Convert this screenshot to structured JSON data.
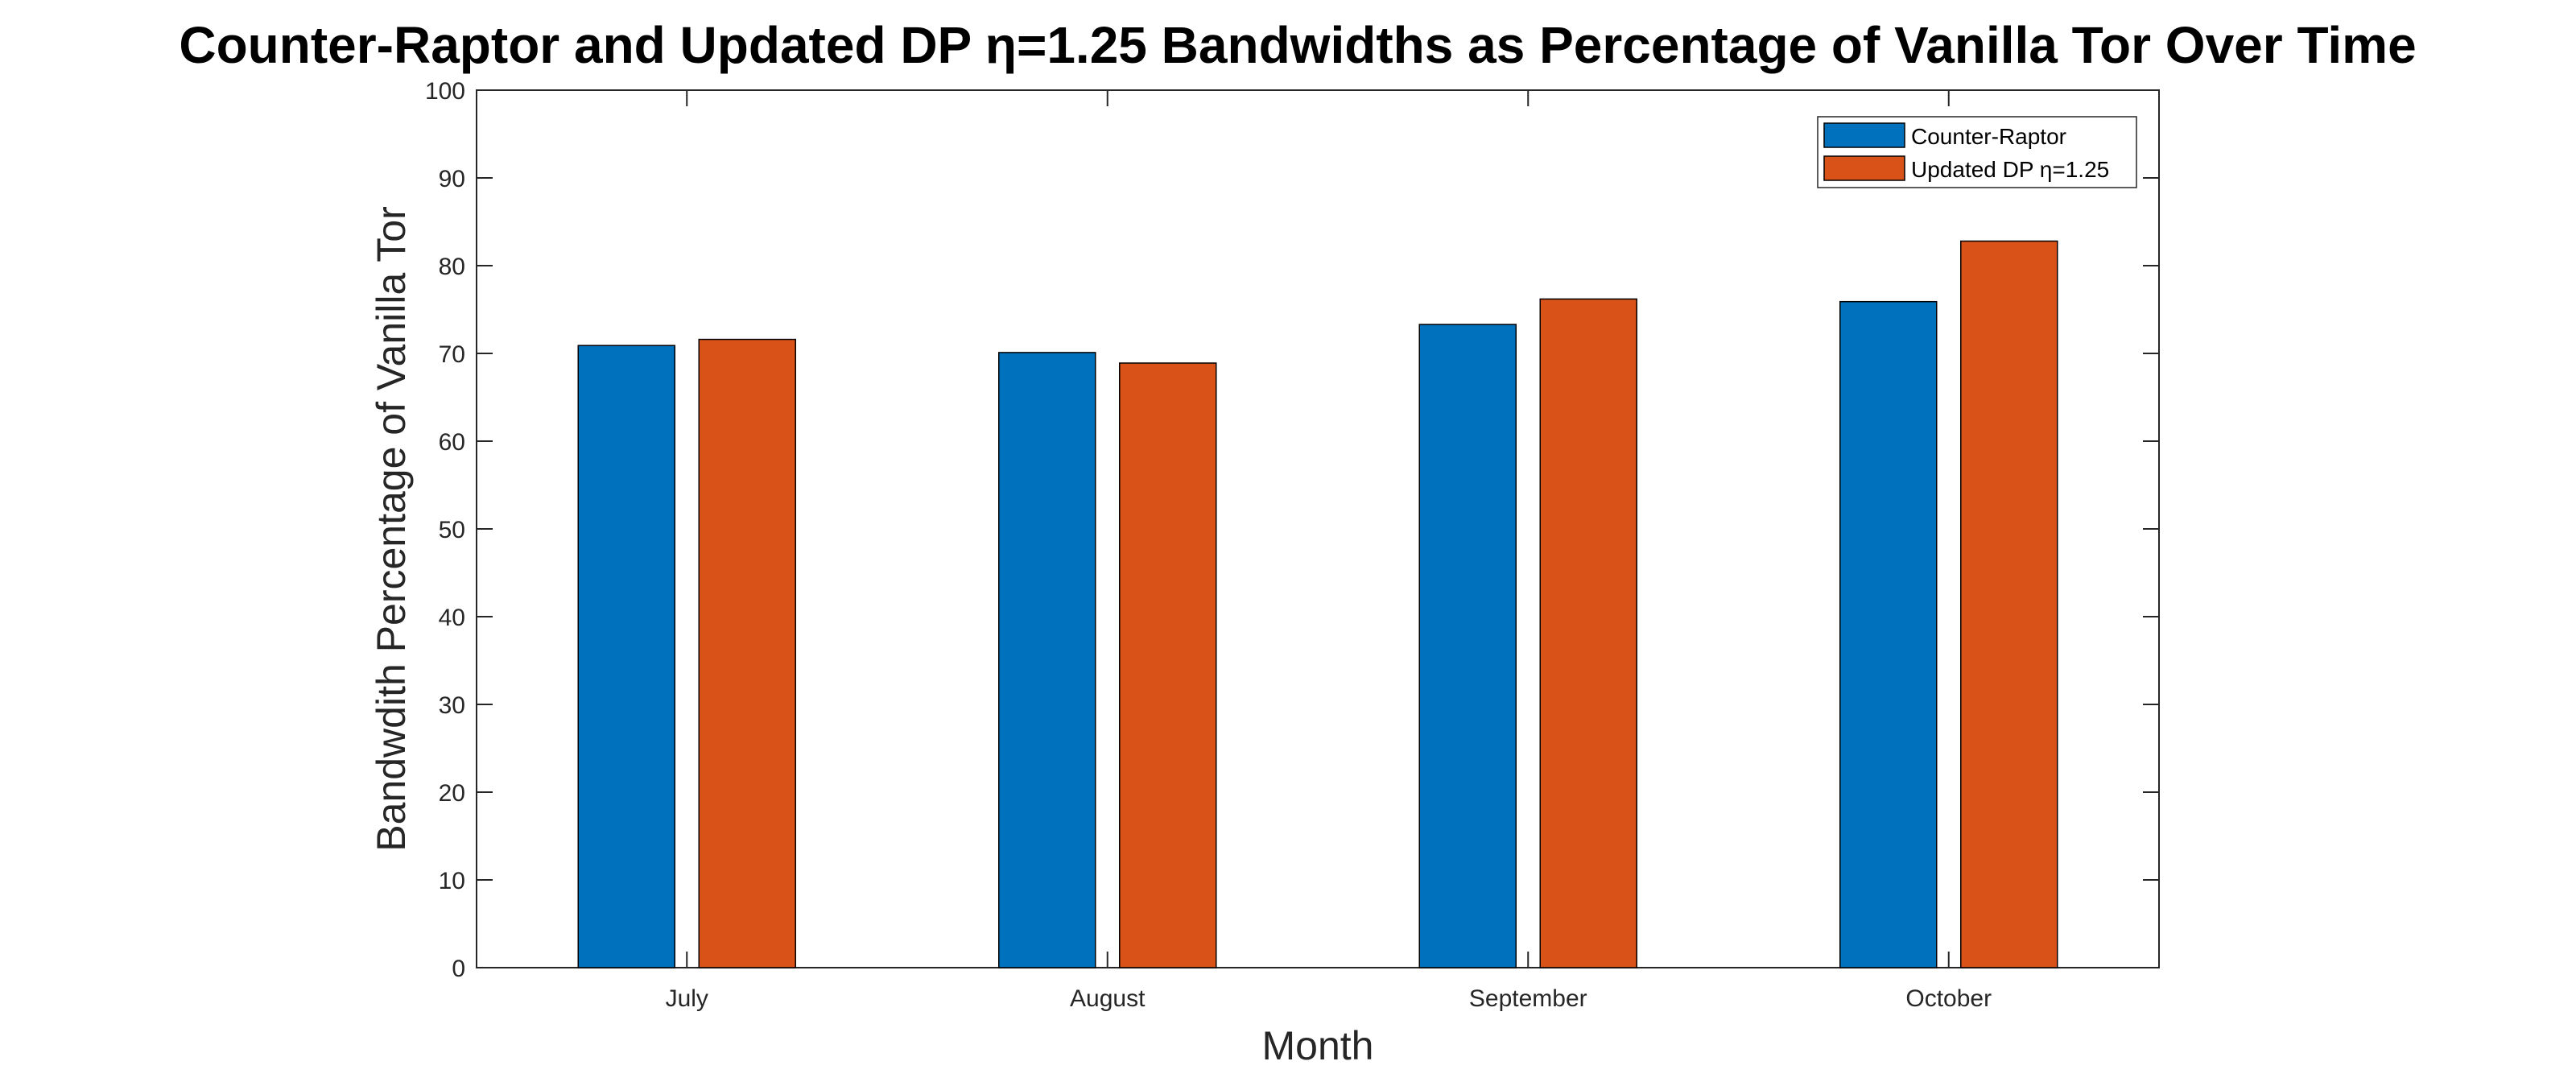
{
  "chart_data": {
    "type": "bar",
    "title": "Counter-Raptor and Updated DP η=1.25 Bandwidths as Percentage of Vanilla Tor Over Time",
    "xlabel": "Month",
    "ylabel": "Bandwdith Percentage of Vanilla Tor",
    "categories": [
      "July",
      "August",
      "September",
      "October"
    ],
    "series": [
      {
        "name": "Counter-Raptor",
        "values": [
          70.9,
          70.1,
          73.3,
          75.9
        ],
        "color": "#0072BD"
      },
      {
        "name": "Updated DP η=1.25",
        "values": [
          71.6,
          68.9,
          76.2,
          82.8
        ],
        "color": "#D95319"
      }
    ],
    "ylim": [
      0,
      100
    ],
    "yticks": [
      0,
      10,
      20,
      30,
      40,
      50,
      60,
      70,
      80,
      90,
      100
    ],
    "grid": false,
    "legend_position": "top-right",
    "axis_color": "#262626"
  }
}
